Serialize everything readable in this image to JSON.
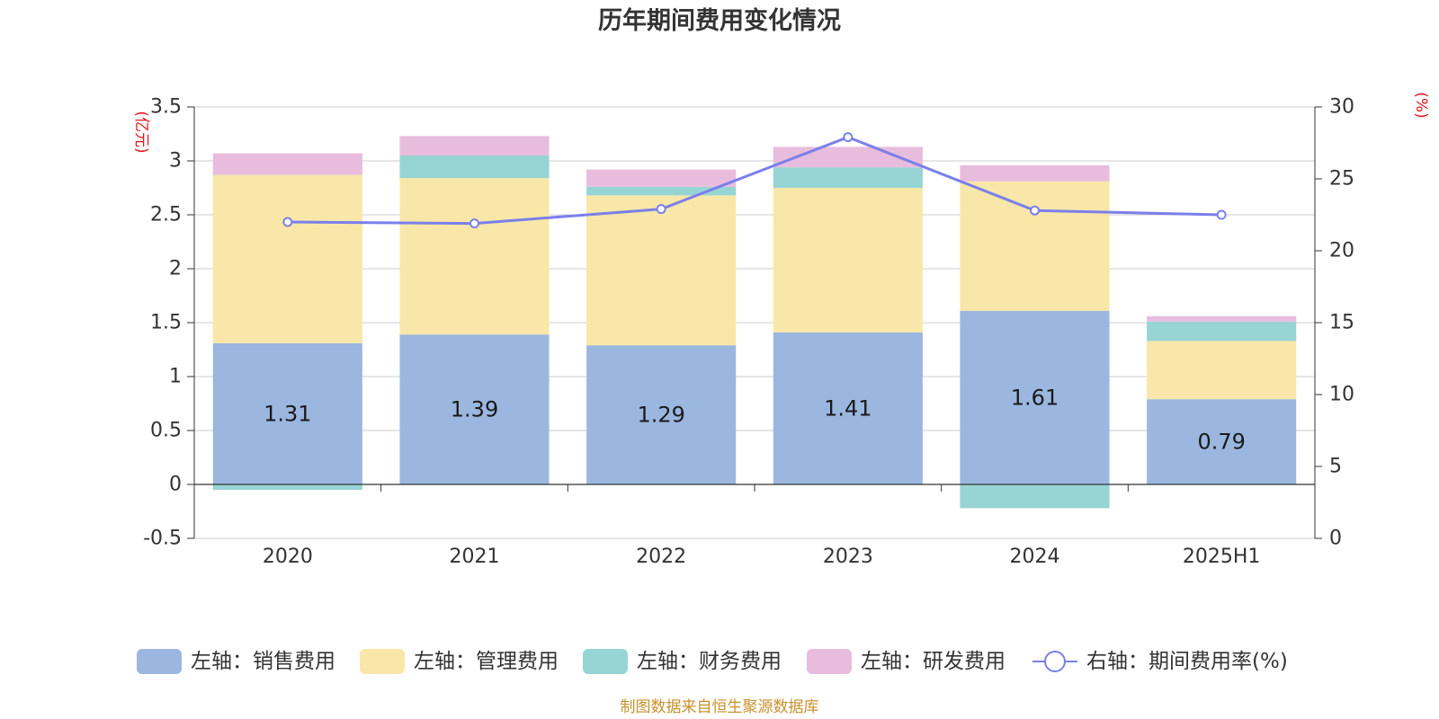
{
  "chart_data": {
    "type": "bar",
    "stacked": true,
    "title": "历年期间费用变化情况",
    "categories": [
      "2020",
      "2021",
      "2022",
      "2023",
      "2024",
      "2025H1"
    ],
    "left_axis": {
      "unit": "(亿元)",
      "ylim": [
        -0.5,
        3.5
      ],
      "ticks": [
        "3.5",
        "3",
        "2.5",
        "2",
        "1.5",
        "1",
        "0.5",
        "0",
        "-0.5"
      ]
    },
    "right_axis": {
      "unit": "(%)",
      "ylim": [
        0,
        30
      ],
      "ticks": [
        "30",
        "25",
        "20",
        "15",
        "10",
        "5",
        "0"
      ]
    },
    "series": [
      {
        "name": "左轴：销售费用",
        "axis": "left",
        "color": "#9bb7e0",
        "values": [
          1.31,
          1.39,
          1.29,
          1.41,
          1.61,
          0.79
        ],
        "labels": [
          "1.31",
          "1.39",
          "1.29",
          "1.41",
          "1.61",
          "0.79"
        ]
      },
      {
        "name": "左轴：管理费用",
        "axis": "left",
        "color": "#f8e7a8",
        "values": [
          1.56,
          1.45,
          1.39,
          1.34,
          1.2,
          0.54
        ]
      },
      {
        "name": "左轴：财务费用",
        "axis": "left",
        "color": "#97d4d4",
        "values": [
          -0.05,
          0.21,
          0.08,
          0.19,
          -0.22,
          0.18
        ]
      },
      {
        "name": "左轴：研发费用",
        "axis": "left",
        "color": "#e8bcdc",
        "values": [
          0.2,
          0.18,
          0.16,
          0.19,
          0.15,
          0.05
        ]
      },
      {
        "name": "右轴：期间费用率(%)",
        "axis": "right",
        "type": "line",
        "color": "#7b7fea",
        "values": [
          22.0,
          21.9,
          22.9,
          27.9,
          22.8,
          22.5
        ]
      }
    ],
    "grid": true,
    "legend_position": "bottom"
  },
  "source": "制图数据来自恒生聚源数据库"
}
